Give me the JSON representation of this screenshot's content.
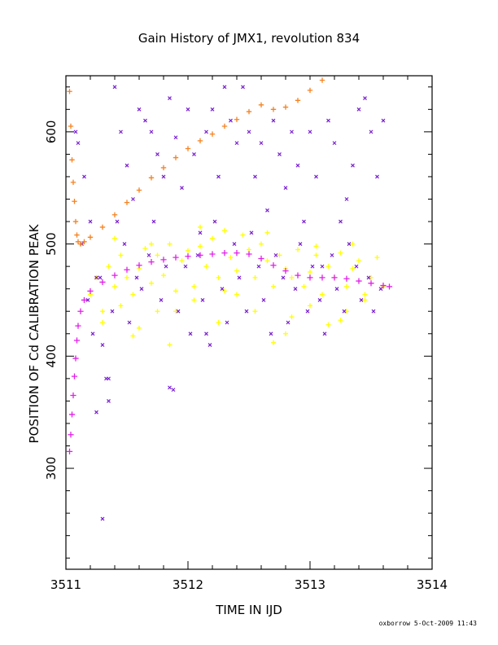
{
  "chart_data": {
    "type": "scatter",
    "title": "Gain History of JMX1, revolution 834",
    "xlabel": "TIME IN IJD",
    "ylabel": "POSITION OF Cd CALIBRATION PEAK",
    "xlim": [
      3511,
      3514
    ],
    "ylim": [
      210,
      650
    ],
    "x_ticks": [
      3511,
      3512,
      3513,
      3514
    ],
    "y_ticks": [
      300,
      400,
      500,
      600
    ],
    "grid": false,
    "colors": {
      "orange": "#f58220",
      "magenta": "#e020e8",
      "yellow": "#ffff00",
      "purple": "#7a1fd0"
    },
    "series": [
      {
        "style": "orange-plus",
        "x": [
          3511.03,
          3511.04,
          3511.05,
          3511.06,
          3511.07,
          3511.08,
          3511.09,
          3511.1,
          3511.12,
          3511.15,
          3511.2,
          3511.3,
          3511.4,
          3511.5,
          3511.6,
          3511.7,
          3511.8,
          3511.9,
          3512.0,
          3512.1,
          3512.2,
          3512.3,
          3512.4,
          3512.5,
          3512.6,
          3512.7,
          3512.8,
          3512.9,
          3513.0,
          3513.1,
          3513.2
        ],
        "y": [
          636,
          605,
          575,
          555,
          538,
          520,
          508,
          502,
          500,
          502,
          506,
          515,
          526,
          537,
          548,
          559,
          568,
          577,
          585,
          592,
          598,
          605,
          611,
          618,
          624,
          620,
          622,
          628,
          637,
          646,
          656
        ]
      },
      {
        "style": "magenta-plus",
        "x": [
          3511.03,
          3511.04,
          3511.05,
          3511.06,
          3511.07,
          3511.08,
          3511.09,
          3511.1,
          3511.12,
          3511.15,
          3511.2,
          3511.3,
          3511.4,
          3511.5,
          3511.6,
          3511.7,
          3511.8,
          3511.9,
          3512.0,
          3512.1,
          3512.2,
          3512.3,
          3512.4,
          3512.5,
          3512.6,
          3512.7,
          3512.8,
          3512.9,
          3513.0,
          3513.1,
          3513.2,
          3513.3,
          3513.4,
          3513.5,
          3513.6,
          3513.65
        ],
        "y": [
          315,
          330,
          348,
          365,
          382,
          398,
          414,
          427,
          440,
          450,
          458,
          466,
          472,
          477,
          481,
          484,
          486,
          488,
          489,
          490,
          491,
          492,
          492,
          491,
          487,
          481,
          476,
          472,
          470,
          470,
          470,
          469,
          467,
          465,
          463,
          462
        ]
      },
      {
        "style": "yellow-plus",
        "x": [
          3511.2,
          3511.25,
          3511.3,
          3511.35,
          3511.4,
          3511.45,
          3511.5,
          3511.55,
          3511.6,
          3511.65,
          3511.7,
          3511.75,
          3511.8,
          3511.85,
          3511.9,
          3511.95,
          3512.0,
          3512.05,
          3512.1,
          3512.15,
          3512.2,
          3512.25,
          3512.3,
          3512.35,
          3512.4,
          3512.45,
          3512.5,
          3512.55,
          3512.6,
          3512.65,
          3512.7,
          3512.75,
          3512.8,
          3512.85,
          3512.9,
          3512.95,
          3513.0,
          3513.05,
          3513.1,
          3513.15,
          3513.2,
          3513.25,
          3513.3,
          3513.35,
          3513.4,
          3513.45,
          3513.5,
          3513.55,
          3513.6,
          3511.3,
          3511.45,
          3511.6,
          3511.75,
          3511.85,
          3512.05,
          3512.25,
          3512.4,
          3512.55,
          3512.7,
          3512.85,
          3513.0,
          3513.15,
          3513.3,
          3513.45,
          3511.4,
          3511.7,
          3512.1,
          3512.65,
          3513.05,
          3513.35,
          3511.55,
          3511.9,
          3512.3,
          3512.8,
          3513.25
        ],
        "y": [
          455,
          470,
          440,
          480,
          462,
          490,
          470,
          455,
          478,
          496,
          465,
          490,
          472,
          500,
          458,
          485,
          494,
          462,
          498,
          480,
          505,
          470,
          512,
          488,
          476,
          508,
          495,
          470,
          500,
          485,
          462,
          490,
          478,
          470,
          495,
          462,
          475,
          490,
          455,
          480,
          470,
          492,
          462,
          478,
          485,
          455,
          470,
          488,
          462,
          430,
          445,
          425,
          440,
          410,
          450,
          430,
          455,
          440,
          412,
          435,
          445,
          428,
          440,
          450,
          505,
          500,
          515,
          510,
          498,
          500,
          418,
          440,
          458,
          420,
          432
        ]
      },
      {
        "style": "purple-x",
        "x": [
          3511.1,
          3511.15,
          3511.2,
          3511.25,
          3511.3,
          3511.35,
          3511.4,
          3511.45,
          3511.5,
          3511.55,
          3511.6,
          3511.65,
          3511.7,
          3511.75,
          3511.8,
          3511.85,
          3511.9,
          3511.95,
          3512.0,
          3512.05,
          3512.1,
          3512.15,
          3512.2,
          3512.25,
          3512.3,
          3512.35,
          3512.4,
          3512.45,
          3512.5,
          3512.55,
          3512.6,
          3512.65,
          3512.7,
          3512.75,
          3512.8,
          3512.85,
          3512.9,
          3512.95,
          3513.0,
          3513.05,
          3513.1,
          3513.15,
          3513.2,
          3513.25,
          3513.3,
          3513.35,
          3513.4,
          3513.45,
          3513.5,
          3513.55,
          3513.6,
          3511.08,
          3511.13,
          3511.18,
          3511.22,
          3511.28,
          3511.33,
          3511.38,
          3511.42,
          3511.48,
          3511.52,
          3511.58,
          3511.62,
          3511.68,
          3511.72,
          3511.78,
          3511.82,
          3511.88,
          3511.92,
          3511.98,
          3512.02,
          3512.08,
          3512.12,
          3512.18,
          3512.22,
          3512.28,
          3512.32,
          3512.38,
          3512.42,
          3512.48,
          3512.52,
          3512.58,
          3512.62,
          3512.68,
          3512.72,
          3512.78,
          3512.82,
          3512.88,
          3512.92,
          3512.98,
          3513.02,
          3513.08,
          3513.12,
          3513.18,
          3513.22,
          3513.28,
          3513.32,
          3513.38,
          3513.42,
          3513.48,
          3513.52,
          3513.58,
          3511.3,
          3511.35,
          3511.25,
          3511.85,
          3512.15
        ],
        "y": [
          590,
          560,
          520,
          470,
          410,
          380,
          640,
          600,
          570,
          540,
          620,
          610,
          600,
          580,
          560,
          630,
          595,
          550,
          620,
          580,
          510,
          600,
          620,
          560,
          640,
          610,
          590,
          640,
          600,
          560,
          590,
          530,
          610,
          580,
          550,
          600,
          570,
          520,
          600,
          560,
          480,
          610,
          590,
          520,
          540,
          570,
          620,
          630,
          600,
          560,
          610,
          600,
          500,
          450,
          420,
          470,
          380,
          440,
          520,
          500,
          430,
          470,
          460,
          490,
          520,
          450,
          480,
          370,
          440,
          480,
          420,
          490,
          450,
          410,
          520,
          460,
          430,
          500,
          470,
          440,
          510,
          480,
          450,
          420,
          490,
          470,
          430,
          460,
          500,
          440,
          480,
          450,
          420,
          490,
          460,
          440,
          500,
          480,
          450,
          470,
          440,
          460,
          255,
          360,
          350,
          372,
          420
        ]
      }
    ]
  },
  "footer": "oxborrow  5-Oct-2009 11:43"
}
